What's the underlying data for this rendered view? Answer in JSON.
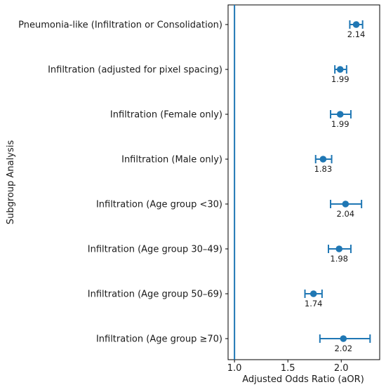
{
  "chart_data": {
    "type": "forest",
    "title": "",
    "xlabel": "Adjusted Odds Ratio (aOR)",
    "ylabel": "Subgroup Analysis",
    "xlim": [
      0.94,
      2.36
    ],
    "xticks": [
      1.0,
      1.5,
      2.0
    ],
    "xtick_labels": [
      "1.0",
      "1.5",
      "2.0"
    ],
    "reference_line": 1.0,
    "grid": false,
    "color": "#1f77b4",
    "rows": [
      {
        "label": "Pneumonia-like (Infiltration or Consolidation)",
        "value": 2.14,
        "value_label": "2.14",
        "ci": [
          2.08,
          2.2
        ]
      },
      {
        "label": "Infiltration (adjusted for pixel spacing)",
        "value": 1.99,
        "value_label": "1.99",
        "ci": [
          1.94,
          2.05
        ]
      },
      {
        "label": "Infiltration (Female only)",
        "value": 1.99,
        "value_label": "1.99",
        "ci": [
          1.9,
          2.09
        ]
      },
      {
        "label": "Infiltration (Male only)",
        "value": 1.83,
        "value_label": "1.83",
        "ci": [
          1.76,
          1.91
        ]
      },
      {
        "label": "Infiltration (Age group <30)",
        "value": 2.04,
        "value_label": "2.04",
        "ci": [
          1.9,
          2.19
        ]
      },
      {
        "label": "Infiltration (Age group 30–49)",
        "value": 1.98,
        "value_label": "1.98",
        "ci": [
          1.88,
          2.09
        ]
      },
      {
        "label": "Infiltration (Age group 50–69)",
        "value": 1.74,
        "value_label": "1.74",
        "ci": [
          1.66,
          1.82
        ]
      },
      {
        "label": "Infiltration (Age group ≥70)",
        "value": 2.02,
        "value_label": "2.02",
        "ci": [
          1.8,
          2.27
        ]
      }
    ]
  }
}
